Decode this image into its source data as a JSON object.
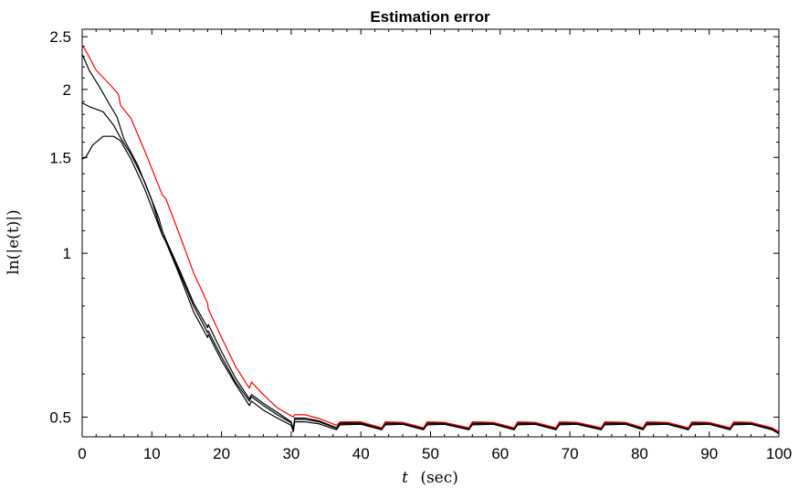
{
  "chart_data": {
    "type": "line",
    "title": "Estimation error",
    "xlabel": {
      "symbol": "t",
      "unit": "(sec)"
    },
    "ylabel": "ln(|e(t)|)",
    "xlim": [
      0,
      100
    ],
    "ylim": [
      0.46,
      2.58
    ],
    "yscale": "log",
    "xticks": [
      0,
      10,
      20,
      30,
      40,
      50,
      60,
      70,
      80,
      90,
      100
    ],
    "yticks": [
      {
        "value": 0.5,
        "label": "0.5"
      },
      {
        "value": 1,
        "label": "1"
      },
      {
        "value": 1.5,
        "label": "1.5"
      },
      {
        "value": 2,
        "label": "2"
      },
      {
        "value": 2.5,
        "label": "2.5"
      }
    ],
    "grid": false,
    "legend": "none",
    "series": [
      {
        "color": "#ff0000",
        "x": [
          0,
          0.5,
          2,
          4,
          5.2,
          5.5,
          7,
          9,
          11.5,
          12,
          14,
          16,
          18,
          18.1,
          20,
          22,
          24,
          24.3,
          26,
          28,
          30.3,
          30.5,
          32,
          34,
          36.5,
          37,
          40,
          43,
          43.5,
          46,
          49,
          49.5,
          52,
          55.5,
          56,
          59,
          62,
          62.5,
          65,
          68,
          68.5,
          71,
          74.5,
          75,
          78,
          80.5,
          81,
          84,
          87,
          87.5,
          90,
          93,
          93.5,
          96,
          99,
          100
        ],
        "y": [
          2.41,
          2.36,
          2.17,
          2.04,
          1.96,
          1.87,
          1.77,
          1.54,
          1.28,
          1.26,
          1.08,
          0.92,
          0.81,
          0.79,
          0.7,
          0.62,
          0.565,
          0.58,
          0.55,
          0.52,
          0.5,
          0.505,
          0.505,
          0.497,
          0.483,
          0.49,
          0.49,
          0.478,
          0.49,
          0.489,
          0.478,
          0.49,
          0.489,
          0.478,
          0.49,
          0.489,
          0.478,
          0.49,
          0.489,
          0.478,
          0.49,
          0.489,
          0.478,
          0.49,
          0.489,
          0.478,
          0.49,
          0.489,
          0.478,
          0.49,
          0.489,
          0.478,
          0.49,
          0.489,
          0.478,
          0.47
        ]
      },
      {
        "color": "#000000",
        "x": [
          0,
          1,
          2.5,
          4,
          5,
          6,
          8,
          10,
          11.5,
          12,
          14,
          16,
          18,
          18.1,
          20,
          22,
          24,
          24.3,
          26,
          28,
          30,
          30.3,
          30.5,
          32,
          34,
          36.5,
          37,
          40,
          43,
          43.5,
          46,
          49,
          49.5,
          52,
          55.5,
          56,
          59,
          62,
          62.5,
          65,
          68,
          68.5,
          71,
          74.5,
          75,
          78,
          80.5,
          81,
          84,
          87,
          87.5,
          90,
          93,
          93.5,
          96,
          99,
          100
        ],
        "y": [
          2.32,
          2.17,
          2.02,
          1.87,
          1.78,
          1.62,
          1.45,
          1.25,
          1.08,
          1.06,
          0.93,
          0.81,
          0.73,
          0.74,
          0.66,
          0.59,
          0.54,
          0.55,
          0.53,
          0.51,
          0.49,
          0.475,
          0.498,
          0.498,
          0.492,
          0.478,
          0.488,
          0.489,
          0.477,
          0.489,
          0.488,
          0.477,
          0.489,
          0.488,
          0.477,
          0.489,
          0.488,
          0.477,
          0.489,
          0.488,
          0.477,
          0.489,
          0.488,
          0.477,
          0.489,
          0.488,
          0.477,
          0.489,
          0.488,
          0.477,
          0.489,
          0.488,
          0.477,
          0.489,
          0.488,
          0.477,
          0.468
        ]
      },
      {
        "color": "#000000",
        "x": [
          0,
          1,
          3,
          4.5,
          5.5,
          7,
          9,
          11,
          11.5,
          12,
          14,
          16,
          18,
          18.1,
          20,
          22,
          24,
          24.3,
          26,
          28,
          30,
          30.3,
          30.5,
          32,
          34,
          36.5,
          37,
          40,
          43,
          43.5,
          46,
          49,
          49.5,
          52,
          55.5,
          56,
          59,
          62,
          62.5,
          65,
          68,
          68.5,
          71,
          74.5,
          75,
          78,
          80.5,
          81,
          84,
          87,
          87.5,
          90,
          93,
          93.5,
          96,
          99,
          100
        ],
        "y": [
          1.89,
          1.86,
          1.82,
          1.72,
          1.63,
          1.52,
          1.35,
          1.16,
          1.1,
          1.06,
          0.92,
          0.8,
          0.715,
          0.72,
          0.645,
          0.58,
          0.535,
          0.545,
          0.525,
          0.505,
          0.488,
          0.473,
          0.495,
          0.495,
          0.49,
          0.477,
          0.486,
          0.487,
          0.476,
          0.486,
          0.487,
          0.476,
          0.486,
          0.487,
          0.476,
          0.486,
          0.487,
          0.476,
          0.486,
          0.487,
          0.476,
          0.486,
          0.487,
          0.476,
          0.486,
          0.487,
          0.476,
          0.486,
          0.487,
          0.476,
          0.486,
          0.487,
          0.476,
          0.486,
          0.487,
          0.476,
          0.467
        ]
      },
      {
        "color": "#000000",
        "x": [
          0,
          0.5,
          1.5,
          3,
          4.5,
          5.5,
          7,
          9,
          11.5,
          12,
          14,
          16,
          18,
          18.1,
          20,
          22,
          24,
          24.3,
          26,
          28,
          30,
          30.3,
          30.5,
          32,
          34,
          36.5,
          37,
          40,
          43,
          43.5,
          46,
          49,
          49.5,
          52,
          55.5,
          56,
          59,
          62,
          62.5,
          65,
          68,
          68.5,
          71,
          74.5,
          75,
          78,
          80.5,
          81,
          84,
          87,
          87.5,
          90,
          93,
          93.5,
          96,
          99,
          100
        ],
        "y": [
          1.49,
          1.5,
          1.58,
          1.64,
          1.64,
          1.61,
          1.49,
          1.31,
          1.08,
          1.05,
          0.91,
          0.78,
          0.7,
          0.71,
          0.635,
          0.575,
          0.525,
          0.535,
          0.515,
          0.498,
          0.483,
          0.47,
          0.49,
          0.49,
          0.486,
          0.474,
          0.484,
          0.485,
          0.474,
          0.484,
          0.485,
          0.474,
          0.484,
          0.485,
          0.474,
          0.484,
          0.485,
          0.474,
          0.484,
          0.485,
          0.474,
          0.484,
          0.485,
          0.474,
          0.484,
          0.485,
          0.474,
          0.484,
          0.485,
          0.474,
          0.484,
          0.485,
          0.474,
          0.484,
          0.485,
          0.474,
          0.466
        ]
      }
    ]
  }
}
